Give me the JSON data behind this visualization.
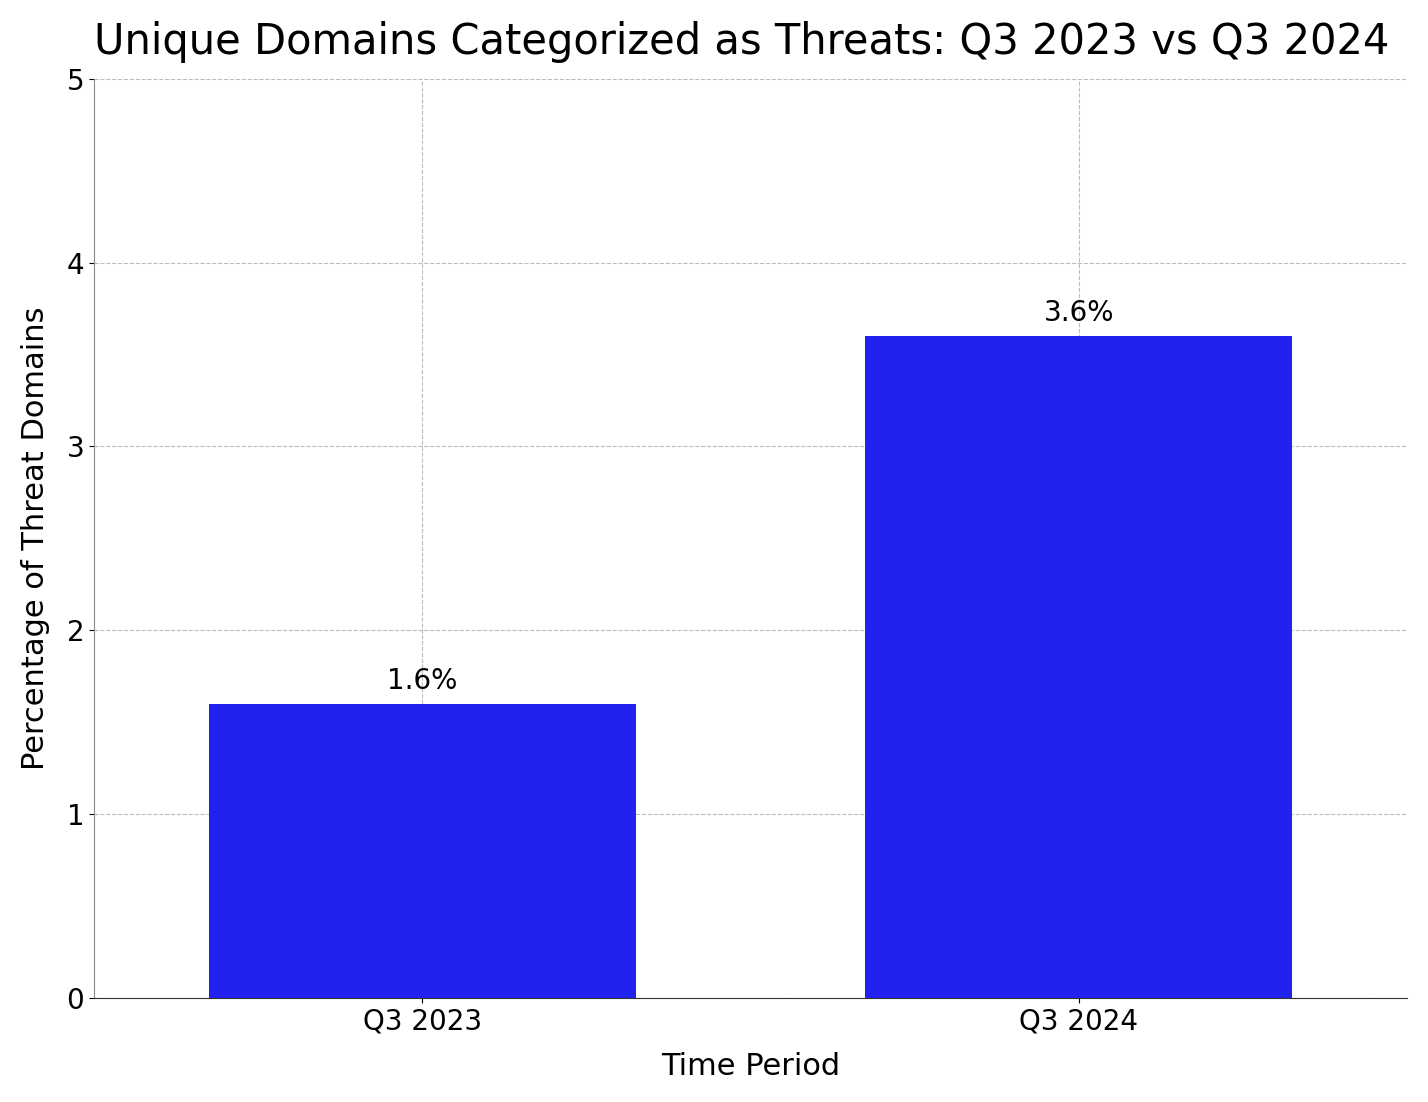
{
  "title": "Unique Domains Categorized as Threats: Q3 2023 vs Q3 2024",
  "categories": [
    "Q3 2023",
    "Q3 2024"
  ],
  "values": [
    1.6,
    3.6
  ],
  "bar_color": "#2222EE",
  "xlabel": "Time Period",
  "ylabel": "Percentage of Threat Domains",
  "ylim": [
    0,
    5
  ],
  "yticks": [
    0,
    1,
    2,
    3,
    4,
    5
  ],
  "grid_color": "#aaaaaa",
  "grid_linestyle": "--",
  "grid_alpha": 0.8,
  "title_fontsize": 30,
  "axis_label_fontsize": 22,
  "tick_fontsize": 20,
  "annotation_fontsize": 20,
  "bar_width": 0.65,
  "background_color": "#ffffff",
  "annotations": [
    "1.6%",
    "3.6%"
  ]
}
